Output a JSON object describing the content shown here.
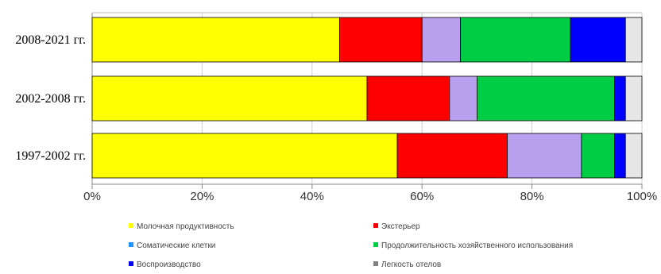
{
  "chart_data": {
    "type": "bar",
    "orientation": "horizontal",
    "stacked": true,
    "normalized": true,
    "categories": [
      "2008-2021 гг.",
      "2002-2008 гг.",
      "1997-2002 гг."
    ],
    "series": [
      {
        "name": "Молочная продуктивность",
        "color": "#ffff00",
        "values": [
          45,
          50,
          55.5
        ]
      },
      {
        "name": "Экстерьер",
        "color": "#ff0000",
        "values": [
          15,
          15,
          20
        ]
      },
      {
        "name": "Соматические клетки",
        "color": "#1e90ff",
        "values": [
          0,
          0,
          0
        ]
      },
      {
        "name": "Продолжительность хозяйственного использования",
        "color": "#00cc44",
        "values": [
          20,
          25,
          6
        ]
      },
      {
        "name": "Воспроизводство",
        "color": "#0000ff",
        "values": [
          10,
          2,
          2
        ]
      },
      {
        "name": "Легкость отелов",
        "color": "#808080",
        "values": [
          3,
          3,
          3
        ]
      }
    ],
    "segment_colors": [
      "#ffff00",
      "#ff0000",
      "#b8a0ee",
      "#00cc44",
      "#0000ff",
      "#e6e6e6"
    ],
    "segment_values": [
      [
        45,
        15,
        7,
        20,
        10,
        3
      ],
      [
        50,
        15,
        5,
        25,
        2,
        3
      ],
      [
        55.5,
        20,
        13.5,
        6,
        2,
        3
      ]
    ],
    "x_ticks": [
      "0%",
      "20%",
      "40%",
      "60%",
      "80%",
      "100%"
    ],
    "xlim": [
      0,
      100
    ],
    "grid": true,
    "legend_position": "bottom",
    "legend_layout": "two-columns"
  }
}
